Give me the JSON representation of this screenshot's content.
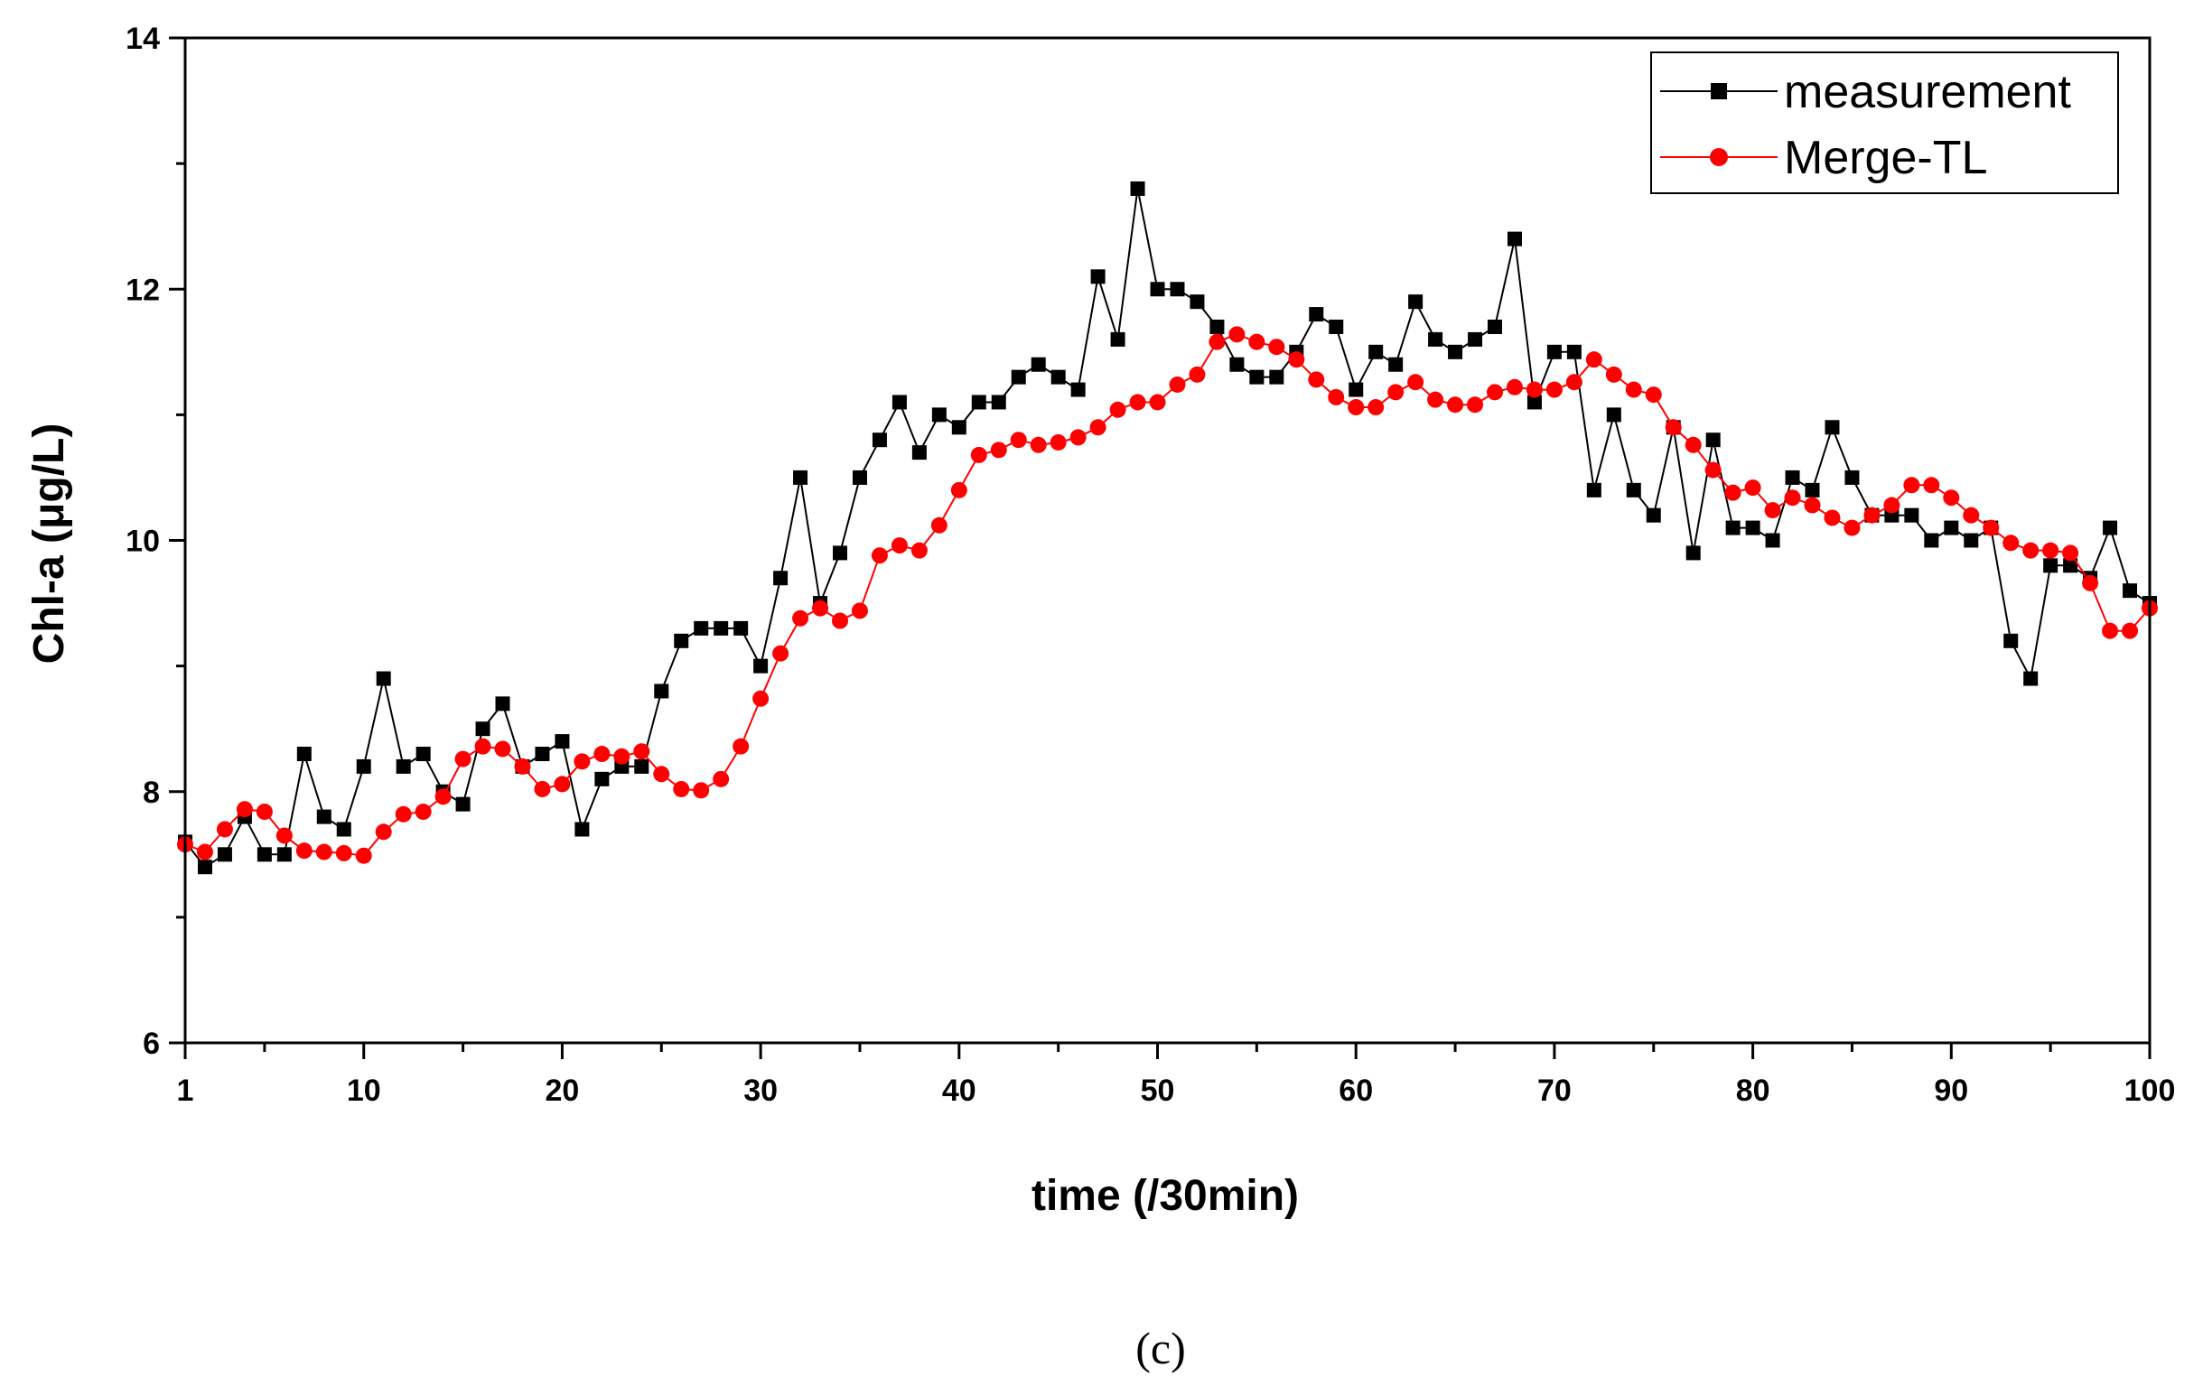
{
  "chart_data": {
    "type": "line",
    "title": "",
    "xlabel": "time (/30min)",
    "ylabel": "Chl-a (μg/L)",
    "xlim": [
      1,
      100
    ],
    "ylim": [
      6,
      14
    ],
    "xticks": [
      1,
      10,
      20,
      30,
      40,
      50,
      60,
      70,
      80,
      90,
      100
    ],
    "yticks": [
      6,
      8,
      10,
      12,
      14
    ],
    "legend_position": "top-right",
    "caption": "(c)",
    "series": [
      {
        "name": "measurement",
        "color": "#000000",
        "marker": "square",
        "x": [
          1,
          2,
          3,
          4,
          5,
          6,
          7,
          8,
          9,
          10,
          11,
          12,
          13,
          14,
          15,
          16,
          17,
          18,
          19,
          20,
          21,
          22,
          23,
          24,
          25,
          26,
          27,
          28,
          29,
          30,
          31,
          32,
          33,
          34,
          35,
          36,
          37,
          38,
          39,
          40,
          41,
          42,
          43,
          44,
          45,
          46,
          47,
          48,
          49,
          50,
          51,
          52,
          53,
          54,
          55,
          56,
          57,
          58,
          59,
          60,
          61,
          62,
          63,
          64,
          65,
          66,
          67,
          68,
          69,
          70,
          71,
          72,
          73,
          74,
          75,
          76,
          77,
          78,
          79,
          80,
          81,
          82,
          83,
          84,
          85,
          86,
          87,
          88,
          89,
          90,
          91,
          92,
          93,
          94,
          95,
          96,
          97,
          98,
          99,
          100
        ],
        "values": [
          7.6,
          7.4,
          7.5,
          7.8,
          7.5,
          7.5,
          8.3,
          7.8,
          7.7,
          8.2,
          8.9,
          8.2,
          8.3,
          8.0,
          7.9,
          8.5,
          8.7,
          8.2,
          8.3,
          8.4,
          7.7,
          8.1,
          8.2,
          8.2,
          8.8,
          9.2,
          9.3,
          9.3,
          9.3,
          9.0,
          9.7,
          10.5,
          9.5,
          9.9,
          10.5,
          10.8,
          11.1,
          10.7,
          11.0,
          10.9,
          11.1,
          11.1,
          11.3,
          11.4,
          11.3,
          11.2,
          12.1,
          11.6,
          12.8,
          12.0,
          12.0,
          11.9,
          11.7,
          11.4,
          11.3,
          11.3,
          11.5,
          11.8,
          11.7,
          11.2,
          11.5,
          11.4,
          11.9,
          11.6,
          11.5,
          11.6,
          11.7,
          12.4,
          11.1,
          11.5,
          11.5,
          10.4,
          11.0,
          10.4,
          10.2,
          10.9,
          9.9,
          10.8,
          10.1,
          10.1,
          10.0,
          10.5,
          10.4,
          10.9,
          10.5,
          10.2,
          10.2,
          10.2,
          10.0,
          10.1,
          10.0,
          10.1,
          9.2,
          8.9,
          9.8,
          9.8,
          9.7,
          10.1,
          9.6,
          9.5
        ]
      },
      {
        "name": "Merge-TL",
        "color": "#ff0000",
        "marker": "circle",
        "x": [
          1,
          2,
          3,
          4,
          5,
          6,
          7,
          8,
          9,
          10,
          11,
          12,
          13,
          14,
          15,
          16,
          17,
          18,
          19,
          20,
          21,
          22,
          23,
          24,
          25,
          26,
          27,
          28,
          29,
          30,
          31,
          32,
          33,
          34,
          35,
          36,
          37,
          38,
          39,
          40,
          41,
          42,
          43,
          44,
          45,
          46,
          47,
          48,
          49,
          50,
          51,
          52,
          53,
          54,
          55,
          56,
          57,
          58,
          59,
          60,
          61,
          62,
          63,
          64,
          65,
          66,
          67,
          68,
          69,
          70,
          71,
          72,
          73,
          74,
          75,
          76,
          77,
          78,
          79,
          80,
          81,
          82,
          83,
          84,
          85,
          86,
          87,
          88,
          89,
          90,
          91,
          92,
          93,
          94,
          95,
          96,
          97,
          98,
          99,
          100
        ],
        "values": [
          7.58,
          7.52,
          7.7,
          7.86,
          7.84,
          7.65,
          7.53,
          7.52,
          7.51,
          7.49,
          7.68,
          7.82,
          7.84,
          7.96,
          8.26,
          8.36,
          8.34,
          8.2,
          8.02,
          8.06,
          8.24,
          8.3,
          8.28,
          8.32,
          8.14,
          8.02,
          8.01,
          8.1,
          8.36,
          8.74,
          9.1,
          9.38,
          9.46,
          9.36,
          9.44,
          9.88,
          9.96,
          9.92,
          10.12,
          10.4,
          10.68,
          10.72,
          10.8,
          10.76,
          10.78,
          10.82,
          10.9,
          11.04,
          11.1,
          11.1,
          11.24,
          11.32,
          11.58,
          11.64,
          11.58,
          11.54,
          11.44,
          11.28,
          11.14,
          11.06,
          11.06,
          11.18,
          11.26,
          11.12,
          11.08,
          11.08,
          11.18,
          11.22,
          11.2,
          11.2,
          11.26,
          11.44,
          11.32,
          11.2,
          11.16,
          10.9,
          10.76,
          10.56,
          10.38,
          10.42,
          10.24,
          10.34,
          10.28,
          10.18,
          10.1,
          10.2,
          10.28,
          10.44,
          10.44,
          10.34,
          10.2,
          10.1,
          9.98,
          9.92,
          9.92,
          9.9,
          9.66,
          9.28,
          9.28,
          9.46
        ]
      }
    ]
  }
}
